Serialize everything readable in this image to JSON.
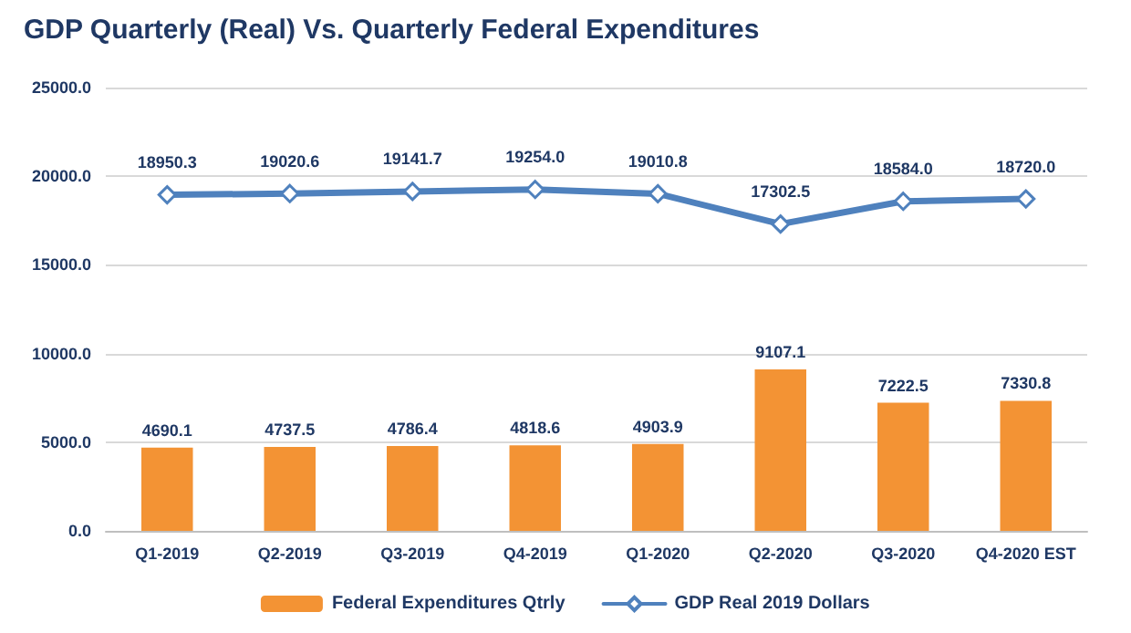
{
  "chart_data": {
    "type": "bar",
    "title": "GDP Quarterly (Real) Vs. Quarterly Federal Expenditures",
    "categories": [
      "Q1-2019",
      "Q2-2019",
      "Q3-2019",
      "Q4-2019",
      "Q1-2020",
      "Q2-2020",
      "Q3-2020",
      "Q4-2020 EST"
    ],
    "series": [
      {
        "name": "Federal Expenditures Qtrly",
        "color": "#f39334",
        "values": [
          4690.1,
          4737.5,
          4786.4,
          4818.6,
          4903.9,
          9107.1,
          7222.5,
          7330.8
        ],
        "value_labels": [
          "4690.1",
          "4737.5",
          "4786.4",
          "4818.6",
          "4903.9",
          "9107.1",
          "7222.5",
          "7330.8"
        ]
      },
      {
        "name": "GDP Real 2019 Dollars",
        "type": "line",
        "color": "#4f81bd",
        "marker": "diamond",
        "values": [
          18950.3,
          19020.6,
          19141.7,
          19254.0,
          19010.8,
          17302.5,
          18584.0,
          18720.0
        ],
        "value_labels": [
          "18950.3",
          "19020.6",
          "19141.7",
          "19254.0",
          "19010.8",
          "17302.5",
          "18584.0",
          "18720.0"
        ]
      }
    ],
    "ylim": [
      0,
      25000
    ],
    "yticks": [
      {
        "value": 0,
        "label": "0.0"
      },
      {
        "value": 5000,
        "label": "5000.0"
      },
      {
        "value": 10000,
        "label": "10000.0"
      },
      {
        "value": 15000,
        "label": "15000.0"
      },
      {
        "value": 20000,
        "label": "20000.0"
      },
      {
        "value": 25000,
        "label": "25000.0"
      }
    ],
    "grid": "y",
    "legend": "bottom"
  }
}
